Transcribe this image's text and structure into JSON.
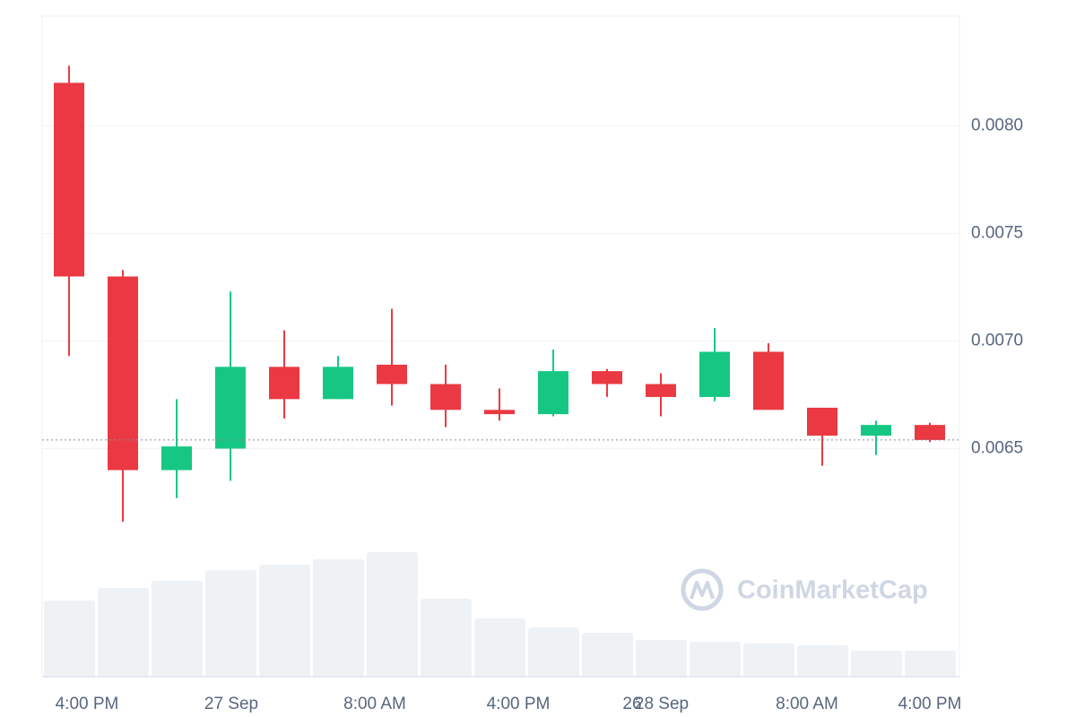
{
  "chart_data": {
    "type": "candlestick",
    "open": [
      0.0082,
      0.0073,
      0.0064,
      0.0065,
      0.00688,
      0.00673,
      0.00689,
      0.0068,
      0.00668,
      0.00666,
      0.00686,
      0.0068,
      0.00674,
      0.00695,
      0.00669,
      0.00656,
      0.00661
    ],
    "high": [
      0.00828,
      0.00733,
      0.00673,
      0.00723,
      0.00705,
      0.00693,
      0.00715,
      0.00689,
      0.00678,
      0.00696,
      0.00687,
      0.00685,
      0.00706,
      0.00699,
      0.00669,
      0.00663,
      0.00662
    ],
    "low": [
      0.00693,
      0.00616,
      0.00627,
      0.00635,
      0.00664,
      0.00673,
      0.0067,
      0.0066,
      0.00663,
      0.00665,
      0.00674,
      0.00665,
      0.00672,
      0.00668,
      0.00642,
      0.00647,
      0.00653
    ],
    "close": [
      0.0073,
      0.0064,
      0.00651,
      0.00688,
      0.00673,
      0.00688,
      0.0068,
      0.00668,
      0.00666,
      0.00686,
      0.0068,
      0.00674,
      0.00695,
      0.00668,
      0.00656,
      0.00661,
      0.00654
    ],
    "volume": [
      85,
      99,
      107,
      119,
      125,
      131,
      139,
      87,
      65,
      55,
      49,
      41,
      39,
      37,
      35,
      29,
      29
    ],
    "volume_ylim": [
      0,
      737
    ],
    "up_color": "#16c784",
    "down_color": "#ea3943",
    "volume_color": "#eff2f5",
    "ylim": [
      0.00544,
      0.00851
    ],
    "yticks": [
      {
        "value": 0.0065,
        "label": "0.0065"
      },
      {
        "value": 0.007,
        "label": "0.0070"
      },
      {
        "value": 0.0075,
        "label": "0.0075"
      },
      {
        "value": 0.008,
        "label": "0.0080"
      }
    ],
    "grid": true,
    "last_price": 0.00654,
    "x_labels": [
      "4:00 PM",
      "27 Sep",
      "8:00 AM",
      "4:00 PM",
      "26",
      "28 Sep",
      "8:00 AM",
      "4:00 PM"
    ],
    "watermark": "CoinMarketCap"
  }
}
